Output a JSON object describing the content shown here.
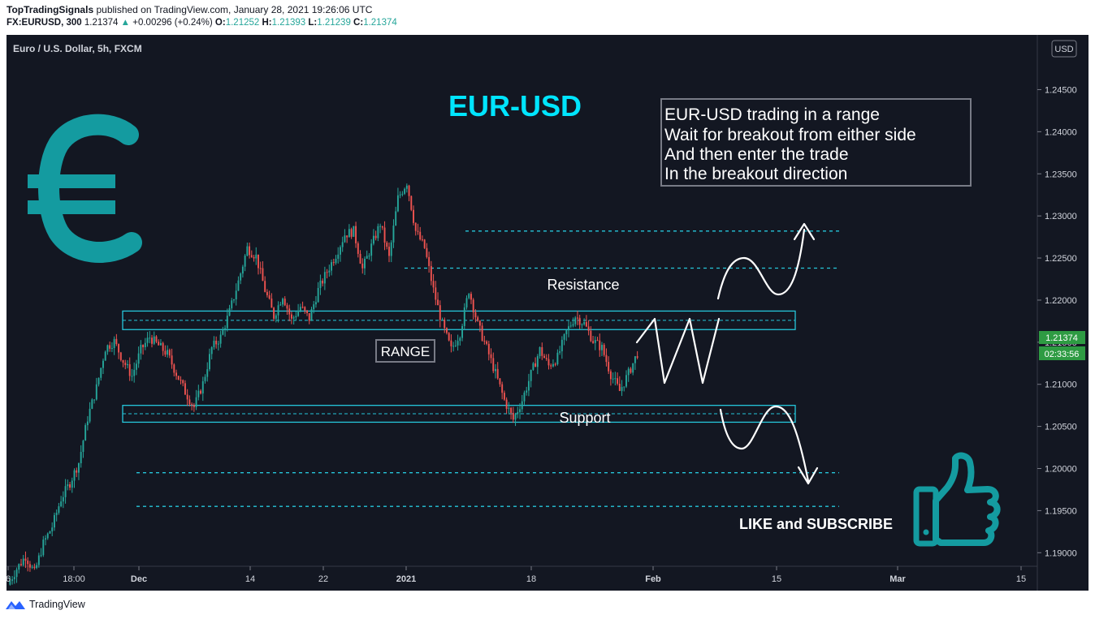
{
  "header": {
    "author": "TopTradingSignals",
    "published": "published on TradingView.com, January 28, 2021 19:26:06 UTC",
    "symbol": "FX:EURUSD, 300",
    "last": "1.21374",
    "change_arrow": "▲",
    "change": "+0.00296 (+0.24%)",
    "o_label": "O:",
    "o_value": "1.21252",
    "h_label": "H:",
    "h_value": "1.21393",
    "l_label": "L:",
    "l_value": "1.21239",
    "c_label": "C:",
    "c_value": "1.21374"
  },
  "chart_title": "Euro / U.S. Dollar, 5h, FXCM",
  "currency_badge": "USD",
  "price_label": "1.21374",
  "countdown_label": "02:33:56",
  "footer": {
    "brand": "TradingView",
    "logo_icon": "tradingview-logo-icon"
  },
  "colors": {
    "background": "#131722",
    "up": "#26a69a",
    "down": "#ef5350",
    "cyan": "#26c6da",
    "teal_icon": "#149ba0",
    "title_cyan": "#00e5ff",
    "price_badge": "#2e9b43"
  },
  "annotations": {
    "title": "EUR-USD",
    "note_lines": [
      "EUR-USD trading in a range",
      "Wait for breakout from either side",
      "And then enter the trade",
      "In the breakout direction"
    ],
    "resistance": "Resistance",
    "support": "Support",
    "range": "RANGE",
    "like": "LIKE and SUBSCRIBE",
    "icons": [
      "euro-icon",
      "thumbs-up-icon"
    ]
  },
  "chart_data": {
    "type": "candlestick",
    "title": "Euro / U.S. Dollar, 5h, FXCM",
    "y_axis": {
      "position": "right",
      "ticks": [
        "1.24500",
        "1.24000",
        "1.23500",
        "1.23000",
        "1.22500",
        "1.22000",
        "1.21500",
        "1.21000",
        "1.20500",
        "1.20000",
        "1.19500",
        "1.19000"
      ],
      "range": [
        1.1855,
        1.2515
      ]
    },
    "x_axis": {
      "ticks": [
        "6",
        "18:00",
        "Dec",
        "14",
        "22",
        "2021",
        "18",
        "Feb",
        "15",
        "Mar",
        "15"
      ]
    },
    "support_zone": [
      1.2055,
      1.2075
    ],
    "resistance_zone": [
      1.2165,
      1.2187
    ],
    "projection_levels": [
      1.2282,
      1.2238,
      1.1995,
      1.1955
    ],
    "last_price": 1.21374,
    "close_path": [
      1.1862,
      1.1881,
      1.1896,
      1.1876,
      1.1911,
      1.1931,
      1.1964,
      1.1983,
      1.2007,
      1.206,
      1.2096,
      1.2143,
      1.2151,
      1.2128,
      1.211,
      1.2141,
      1.2156,
      1.2146,
      1.2136,
      1.2113,
      1.2091,
      1.2073,
      1.2101,
      1.2143,
      1.2156,
      1.2186,
      1.2222,
      1.2262,
      1.2252,
      1.2212,
      1.2181,
      1.2206,
      1.2176,
      1.2192,
      1.2178,
      1.2212,
      1.2234,
      1.2254,
      1.2278,
      1.2282,
      1.2237,
      1.2264,
      1.2291,
      1.225,
      1.2321,
      1.234,
      1.2282,
      1.2262,
      1.2212,
      1.2171,
      1.2141,
      1.2161,
      1.2212,
      1.2171,
      1.2143,
      1.2113,
      1.2081,
      1.2058,
      1.2081,
      1.2112,
      1.2141,
      1.2122,
      1.2132,
      1.2162,
      1.2181,
      1.2172,
      1.2152,
      1.2143,
      1.2112,
      1.2092,
      1.2113,
      1.2137
    ]
  }
}
